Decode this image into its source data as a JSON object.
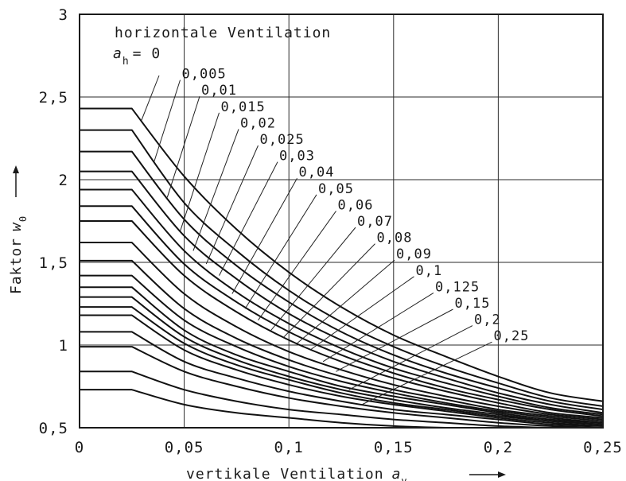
{
  "chart_data": {
    "type": "line",
    "title": "horizontale Ventilation",
    "legend_symbol": "a",
    "legend_subscript": "h",
    "legend_prefix": "= 0",
    "xlabel": "vertikale Ventilation",
    "xlabel_symbol": "a",
    "xlabel_subscript": "v",
    "ylabel": "Faktor",
    "ylabel_symbol": "w",
    "ylabel_subscript": "0",
    "xlim": [
      0,
      0.25
    ],
    "ylim": [
      0.5,
      3
    ],
    "x_ticks": [
      0,
      0.05,
      0.1,
      0.15,
      0.2,
      0.25
    ],
    "x_tick_labels": [
      "0",
      "0,05",
      "0,1",
      "0,15",
      "0,2",
      "0,25"
    ],
    "y_ticks": [
      0.5,
      1,
      1.5,
      2,
      2.5,
      3
    ],
    "y_tick_labels": [
      "0,5",
      "1",
      "1,5",
      "2",
      "2,5",
      "3"
    ],
    "grid": true,
    "x": [
      0,
      0.025,
      0.05,
      0.075,
      0.1,
      0.125,
      0.15,
      0.175,
      0.2,
      0.225,
      0.25
    ],
    "series": [
      {
        "name": "0",
        "values": [
          2.43,
          2.43,
          2.02,
          1.7,
          1.44,
          1.23,
          1.06,
          0.93,
          0.81,
          0.71,
          0.66
        ]
      },
      {
        "name": "0,005",
        "values": [
          2.3,
          2.3,
          1.86,
          1.57,
          1.33,
          1.14,
          0.99,
          0.87,
          0.77,
          0.68,
          0.63
        ]
      },
      {
        "name": "0,01",
        "values": [
          2.17,
          2.17,
          1.76,
          1.48,
          1.26,
          1.08,
          0.94,
          0.83,
          0.74,
          0.66,
          0.61
        ]
      },
      {
        "name": "0,015",
        "values": [
          2.05,
          2.05,
          1.66,
          1.4,
          1.19,
          1.03,
          0.9,
          0.8,
          0.71,
          0.64,
          0.59
        ]
      },
      {
        "name": "0,02",
        "values": [
          1.94,
          1.94,
          1.57,
          1.32,
          1.13,
          0.98,
          0.86,
          0.77,
          0.69,
          0.62,
          0.58
        ]
      },
      {
        "name": "0,025",
        "values": [
          1.84,
          1.84,
          1.49,
          1.26,
          1.08,
          0.94,
          0.83,
          0.74,
          0.67,
          0.61,
          0.57
        ]
      },
      {
        "name": "0,03",
        "values": [
          1.75,
          1.75,
          1.42,
          1.2,
          1.03,
          0.9,
          0.8,
          0.72,
          0.65,
          0.59,
          0.56
        ]
      },
      {
        "name": "0,04",
        "values": [
          1.62,
          1.62,
          1.31,
          1.11,
          0.96,
          0.85,
          0.76,
          0.69,
          0.63,
          0.58,
          0.55
        ]
      },
      {
        "name": "0,05",
        "values": [
          1.51,
          1.51,
          1.22,
          1.04,
          0.91,
          0.81,
          0.73,
          0.67,
          0.61,
          0.57,
          0.54
        ]
      },
      {
        "name": "0,06",
        "values": [
          1.42,
          1.42,
          1.15,
          0.99,
          0.87,
          0.78,
          0.71,
          0.65,
          0.6,
          0.56,
          0.53
        ]
      },
      {
        "name": "0,07",
        "values": [
          1.35,
          1.35,
          1.09,
          0.94,
          0.84,
          0.75,
          0.69,
          0.64,
          0.59,
          0.55,
          0.53
        ]
      },
      {
        "name": "0,08",
        "values": [
          1.29,
          1.29,
          1.05,
          0.91,
          0.81,
          0.73,
          0.67,
          0.62,
          0.58,
          0.54,
          0.52
        ]
      },
      {
        "name": "0,09",
        "values": [
          1.23,
          1.23,
          1.01,
          0.88,
          0.79,
          0.71,
          0.65,
          0.61,
          0.57,
          0.54,
          0.52
        ]
      },
      {
        "name": "0,1",
        "values": [
          1.18,
          1.18,
          0.97,
          0.85,
          0.76,
          0.69,
          0.64,
          0.6,
          0.56,
          0.53,
          0.51
        ]
      },
      {
        "name": "0,125",
        "values": [
          1.08,
          1.08,
          0.9,
          0.8,
          0.72,
          0.66,
          0.61,
          0.58,
          0.55,
          0.52,
          0.51
        ]
      },
      {
        "name": "0,15",
        "values": [
          0.99,
          0.99,
          0.84,
          0.75,
          0.68,
          0.63,
          0.59,
          0.56,
          0.53,
          0.51,
          0.5
        ]
      },
      {
        "name": "0,2",
        "values": [
          0.84,
          0.84,
          0.73,
          0.66,
          0.61,
          0.58,
          0.55,
          0.53,
          0.51,
          0.5,
          0.5
        ]
      },
      {
        "name": "0,25",
        "values": [
          0.73,
          0.73,
          0.64,
          0.59,
          0.56,
          0.53,
          0.51,
          0.5,
          0.5,
          0.5,
          0.5
        ]
      }
    ]
  }
}
